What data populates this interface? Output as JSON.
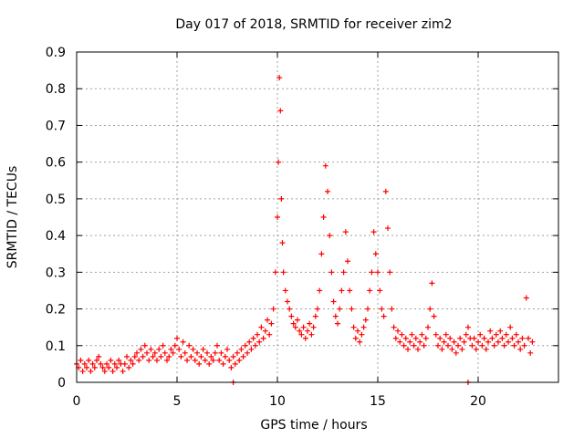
{
  "chart_data": {
    "type": "scatter",
    "title": "Day 017 of 2018, SRMTID for receiver zim2",
    "xlabel": "GPS time / hours",
    "ylabel": "SRMTID / TECUs",
    "xlim": [
      0,
      24
    ],
    "ylim": [
      0,
      0.9
    ],
    "xticks": [
      0,
      5,
      10,
      15,
      20
    ],
    "xtick_labels": [
      "0",
      "5",
      "10",
      "15",
      "20"
    ],
    "yticks": [
      0,
      0.1,
      0.2,
      0.3,
      0.4,
      0.5,
      0.6,
      0.7,
      0.8,
      0.9
    ],
    "ytick_labels": [
      "0",
      "0.1",
      "0.2",
      "0.3",
      "0.4",
      "0.5",
      "0.6",
      "0.7",
      "0.8",
      "0.9"
    ],
    "grid": true,
    "marker": "+",
    "color": "#ff0000",
    "series": [
      {
        "name": "SRMTID",
        "points": [
          [
            0.0,
            0.05
          ],
          [
            0.1,
            0.04
          ],
          [
            0.2,
            0.06
          ],
          [
            0.3,
            0.03
          ],
          [
            0.4,
            0.05
          ],
          [
            0.5,
            0.04
          ],
          [
            0.6,
            0.06
          ],
          [
            0.7,
            0.03
          ],
          [
            0.8,
            0.05
          ],
          [
            0.9,
            0.04
          ],
          [
            1.0,
            0.06
          ],
          [
            1.1,
            0.07
          ],
          [
            1.2,
            0.05
          ],
          [
            1.3,
            0.04
          ],
          [
            1.4,
            0.03
          ],
          [
            1.5,
            0.05
          ],
          [
            1.6,
            0.04
          ],
          [
            1.7,
            0.06
          ],
          [
            1.8,
            0.03
          ],
          [
            1.9,
            0.05
          ],
          [
            2.0,
            0.04
          ],
          [
            2.1,
            0.06
          ],
          [
            2.2,
            0.05
          ],
          [
            2.3,
            0.03
          ],
          [
            2.4,
            0.05
          ],
          [
            2.5,
            0.07
          ],
          [
            2.6,
            0.04
          ],
          [
            2.7,
            0.06
          ],
          [
            2.8,
            0.05
          ],
          [
            2.9,
            0.07
          ],
          [
            3.0,
            0.08
          ],
          [
            3.1,
            0.06
          ],
          [
            3.2,
            0.09
          ],
          [
            3.3,
            0.07
          ],
          [
            3.4,
            0.1
          ],
          [
            3.5,
            0.08
          ],
          [
            3.6,
            0.06
          ],
          [
            3.7,
            0.09
          ],
          [
            3.8,
            0.07
          ],
          [
            3.9,
            0.08
          ],
          [
            4.0,
            0.06
          ],
          [
            4.1,
            0.09
          ],
          [
            4.2,
            0.07
          ],
          [
            4.3,
            0.1
          ],
          [
            4.4,
            0.08
          ],
          [
            4.5,
            0.06
          ],
          [
            4.6,
            0.07
          ],
          [
            4.7,
            0.09
          ],
          [
            4.8,
            0.08
          ],
          [
            4.9,
            0.1
          ],
          [
            5.0,
            0.12
          ],
          [
            5.1,
            0.09
          ],
          [
            5.2,
            0.07
          ],
          [
            5.3,
            0.11
          ],
          [
            5.4,
            0.08
          ],
          [
            5.5,
            0.06
          ],
          [
            5.6,
            0.1
          ],
          [
            5.7,
            0.07
          ],
          [
            5.8,
            0.09
          ],
          [
            5.9,
            0.06
          ],
          [
            6.0,
            0.08
          ],
          [
            6.1,
            0.05
          ],
          [
            6.2,
            0.07
          ],
          [
            6.3,
            0.09
          ],
          [
            6.4,
            0.06
          ],
          [
            6.5,
            0.08
          ],
          [
            6.6,
            0.05
          ],
          [
            6.7,
            0.07
          ],
          [
            6.8,
            0.06
          ],
          [
            6.9,
            0.08
          ],
          [
            7.0,
            0.1
          ],
          [
            7.1,
            0.06
          ],
          [
            7.2,
            0.08
          ],
          [
            7.3,
            0.05
          ],
          [
            7.4,
            0.07
          ],
          [
            7.5,
            0.09
          ],
          [
            7.6,
            0.06
          ],
          [
            7.7,
            0.04
          ],
          [
            7.8,
            0.07
          ],
          [
            7.9,
            0.05
          ],
          [
            8.0,
            0.08
          ],
          [
            8.1,
            0.06
          ],
          [
            8.2,
            0.09
          ],
          [
            8.3,
            0.07
          ],
          [
            8.4,
            0.1
          ],
          [
            8.5,
            0.08
          ],
          [
            8.6,
            0.11
          ],
          [
            8.7,
            0.09
          ],
          [
            8.8,
            0.12
          ],
          [
            8.9,
            0.1
          ],
          [
            9.0,
            0.13
          ],
          [
            9.1,
            0.11
          ],
          [
            9.2,
            0.15
          ],
          [
            9.3,
            0.12
          ],
          [
            9.4,
            0.14
          ],
          [
            9.5,
            0.17
          ],
          [
            9.6,
            0.13
          ],
          [
            9.7,
            0.16
          ],
          [
            9.8,
            0.2
          ],
          [
            9.9,
            0.3
          ],
          [
            10.0,
            0.45
          ],
          [
            10.05,
            0.6
          ],
          [
            10.1,
            0.83
          ],
          [
            10.15,
            0.74
          ],
          [
            10.2,
            0.5
          ],
          [
            10.25,
            0.38
          ],
          [
            10.3,
            0.3
          ],
          [
            10.4,
            0.25
          ],
          [
            10.5,
            0.22
          ],
          [
            10.6,
            0.2
          ],
          [
            10.7,
            0.18
          ],
          [
            10.8,
            0.16
          ],
          [
            10.9,
            0.15
          ],
          [
            11.0,
            0.17
          ],
          [
            11.1,
            0.14
          ],
          [
            11.2,
            0.13
          ],
          [
            11.3,
            0.15
          ],
          [
            11.4,
            0.12
          ],
          [
            11.5,
            0.14
          ],
          [
            11.6,
            0.16
          ],
          [
            11.7,
            0.13
          ],
          [
            11.8,
            0.15
          ],
          [
            11.9,
            0.18
          ],
          [
            12.0,
            0.2
          ],
          [
            12.1,
            0.25
          ],
          [
            12.2,
            0.35
          ],
          [
            12.3,
            0.45
          ],
          [
            12.4,
            0.59
          ],
          [
            12.5,
            0.52
          ],
          [
            12.6,
            0.4
          ],
          [
            12.7,
            0.3
          ],
          [
            12.8,
            0.22
          ],
          [
            12.9,
            0.18
          ],
          [
            13.0,
            0.16
          ],
          [
            13.1,
            0.2
          ],
          [
            13.2,
            0.25
          ],
          [
            13.3,
            0.3
          ],
          [
            13.4,
            0.41
          ],
          [
            13.5,
            0.33
          ],
          [
            13.6,
            0.25
          ],
          [
            13.7,
            0.2
          ],
          [
            13.8,
            0.15
          ],
          [
            13.9,
            0.12
          ],
          [
            14.0,
            0.14
          ],
          [
            14.1,
            0.11
          ],
          [
            14.2,
            0.13
          ],
          [
            14.3,
            0.15
          ],
          [
            14.4,
            0.17
          ],
          [
            14.5,
            0.2
          ],
          [
            14.6,
            0.25
          ],
          [
            14.7,
            0.3
          ],
          [
            14.8,
            0.41
          ],
          [
            14.9,
            0.35
          ],
          [
            15.0,
            0.3
          ],
          [
            15.1,
            0.25
          ],
          [
            15.2,
            0.2
          ],
          [
            15.3,
            0.18
          ],
          [
            15.4,
            0.52
          ],
          [
            15.5,
            0.42
          ],
          [
            15.6,
            0.3
          ],
          [
            15.7,
            0.2
          ],
          [
            15.8,
            0.15
          ],
          [
            15.9,
            0.12
          ],
          [
            16.0,
            0.14
          ],
          [
            16.1,
            0.11
          ],
          [
            16.2,
            0.13
          ],
          [
            16.3,
            0.1
          ],
          [
            16.4,
            0.12
          ],
          [
            16.5,
            0.09
          ],
          [
            16.6,
            0.11
          ],
          [
            16.7,
            0.13
          ],
          [
            16.8,
            0.1
          ],
          [
            16.9,
            0.12
          ],
          [
            17.0,
            0.09
          ],
          [
            17.1,
            0.11
          ],
          [
            17.2,
            0.13
          ],
          [
            17.3,
            0.1
          ],
          [
            17.4,
            0.12
          ],
          [
            17.5,
            0.15
          ],
          [
            17.6,
            0.2
          ],
          [
            17.7,
            0.27
          ],
          [
            17.8,
            0.18
          ],
          [
            17.9,
            0.13
          ],
          [
            18.0,
            0.1
          ],
          [
            18.1,
            0.12
          ],
          [
            18.2,
            0.09
          ],
          [
            18.3,
            0.11
          ],
          [
            18.4,
            0.13
          ],
          [
            18.5,
            0.1
          ],
          [
            18.6,
            0.12
          ],
          [
            18.7,
            0.09
          ],
          [
            18.8,
            0.11
          ],
          [
            18.9,
            0.08
          ],
          [
            19.0,
            0.1
          ],
          [
            19.1,
            0.12
          ],
          [
            19.2,
            0.09
          ],
          [
            19.3,
            0.11
          ],
          [
            19.4,
            0.13
          ],
          [
            19.5,
            0.15
          ],
          [
            19.6,
            0.12
          ],
          [
            19.7,
            0.1
          ],
          [
            19.8,
            0.12
          ],
          [
            19.9,
            0.09
          ],
          [
            20.0,
            0.11
          ],
          [
            20.1,
            0.13
          ],
          [
            20.2,
            0.1
          ],
          [
            20.3,
            0.12
          ],
          [
            20.4,
            0.09
          ],
          [
            20.5,
            0.11
          ],
          [
            20.6,
            0.14
          ],
          [
            20.7,
            0.12
          ],
          [
            20.8,
            0.1
          ],
          [
            20.9,
            0.13
          ],
          [
            21.0,
            0.11
          ],
          [
            21.1,
            0.14
          ],
          [
            21.2,
            0.12
          ],
          [
            21.3,
            0.1
          ],
          [
            21.4,
            0.13
          ],
          [
            21.5,
            0.11
          ],
          [
            21.6,
            0.15
          ],
          [
            21.7,
            0.12
          ],
          [
            21.8,
            0.1
          ],
          [
            21.9,
            0.13
          ],
          [
            22.0,
            0.11
          ],
          [
            22.1,
            0.09
          ],
          [
            22.2,
            0.12
          ],
          [
            22.3,
            0.1
          ],
          [
            22.4,
            0.23
          ],
          [
            22.5,
            0.12
          ],
          [
            22.6,
            0.08
          ],
          [
            22.7,
            0.11
          ],
          [
            7.8,
            0.0
          ],
          [
            19.5,
            0.0
          ]
        ]
      }
    ]
  }
}
